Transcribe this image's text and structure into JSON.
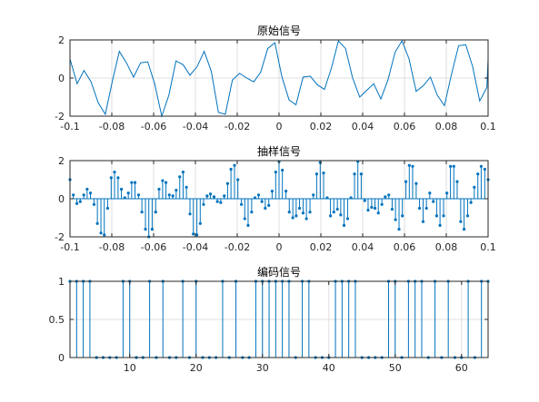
{
  "colors": {
    "series": "#0072BD",
    "axes": "#262626",
    "grid": "#dfdfdf",
    "background": "#ffffff"
  },
  "chart_data": [
    {
      "type": "line",
      "title": "原始信号",
      "xlabel": "",
      "ylabel": "",
      "xlim": [
        -0.1,
        0.1
      ],
      "ylim": [
        -2,
        2
      ],
      "grid": true,
      "xticks": [
        -0.1,
        -0.08,
        -0.06,
        -0.04,
        -0.02,
        0,
        0.02,
        0.04,
        0.06,
        0.08,
        0.1
      ],
      "xticklabels": [
        "-0.1",
        "-0.08",
        "-0.06",
        "-0.04",
        "-0.02",
        "0",
        "0.02",
        "0.04",
        "0.06",
        "0.08",
        "0.1"
      ],
      "yticks": [
        -2,
        0,
        2
      ],
      "yticklabels": [
        "-2",
        "0",
        "2"
      ],
      "series": [
        {
          "x": [
            -0.1,
            -0.0966,
            -0.0933,
            -0.0899,
            -0.0865,
            -0.0831,
            -0.0797,
            -0.0764,
            -0.073,
            -0.0696,
            -0.0662,
            -0.0628,
            -0.0595,
            -0.0561,
            -0.0527,
            -0.0493,
            -0.0459,
            -0.0426,
            -0.0392,
            -0.0358,
            -0.0324,
            -0.029,
            -0.0257,
            -0.0223,
            -0.0189,
            -0.0155,
            -0.0121,
            -0.0088,
            -0.0054,
            -0.002,
            0.0014,
            0.0048,
            0.0081,
            0.0115,
            0.0149,
            0.0183,
            0.0217,
            0.025,
            0.0284,
            0.0318,
            0.0352,
            0.0386,
            0.0419,
            0.0453,
            0.0487,
            0.0521,
            0.0555,
            0.0588,
            0.0622,
            0.0656,
            0.069,
            0.0724,
            0.0757,
            0.0791,
            0.0825,
            0.0859,
            0.0893,
            0.0926,
            0.096,
            0.0994,
            0.1
          ],
          "y": [
            1.0,
            -0.3,
            0.4,
            -0.2,
            -1.3,
            -1.9,
            -0.15,
            1.4,
            0.8,
            0.05,
            0.8,
            0.85,
            -0.3,
            -2.0,
            -0.9,
            0.9,
            0.7,
            0.15,
            0.6,
            1.4,
            0.35,
            -1.8,
            -1.9,
            -0.1,
            0.25,
            0.0,
            -0.2,
            0.3,
            1.55,
            1.85,
            0.05,
            -1.15,
            -1.4,
            0.05,
            0.1,
            -0.35,
            -0.6,
            0.5,
            1.95,
            1.55,
            0.0,
            -1.0,
            -0.65,
            -0.3,
            -1.1,
            -0.1,
            1.35,
            1.95,
            1.0,
            -0.7,
            -0.4,
            0.05,
            -0.9,
            -1.45,
            0.2,
            1.7,
            1.75,
            0.6,
            -1.2,
            -0.5,
            1.0
          ]
        }
      ]
    },
    {
      "type": "stem",
      "title": "抽样信号",
      "xlabel": "",
      "ylabel": "",
      "xlim": [
        -0.1,
        0.1
      ],
      "ylim": [
        -2,
        2
      ],
      "grid": true,
      "xticks": [
        -0.1,
        -0.08,
        -0.06,
        -0.04,
        -0.02,
        0,
        0.02,
        0.04,
        0.06,
        0.08,
        0.1
      ],
      "xticklabels": [
        "-0.1",
        "-0.08",
        "-0.06",
        "-0.04",
        "-0.02",
        "0",
        "0.02",
        "0.04",
        "0.06",
        "0.08",
        "0.1"
      ],
      "yticks": [
        -2,
        0,
        2
      ],
      "yticklabels": [
        "-2",
        "0",
        "2"
      ],
      "series": [
        {
          "x": [
            -0.1,
            -0.0984,
            -0.0967,
            -0.0951,
            -0.0934,
            -0.0918,
            -0.0902,
            -0.0885,
            -0.0869,
            -0.0852,
            -0.0836,
            -0.082,
            -0.0803,
            -0.0787,
            -0.077,
            -0.0754,
            -0.0738,
            -0.0721,
            -0.0705,
            -0.0689,
            -0.0672,
            -0.0656,
            -0.0639,
            -0.0623,
            -0.0607,
            -0.059,
            -0.0574,
            -0.0557,
            -0.0541,
            -0.0525,
            -0.0508,
            -0.0492,
            -0.0475,
            -0.0459,
            -0.0443,
            -0.0426,
            -0.041,
            -0.0393,
            -0.0377,
            -0.0361,
            -0.0344,
            -0.0328,
            -0.0311,
            -0.0295,
            -0.0279,
            -0.0262,
            -0.0246,
            -0.023,
            -0.0213,
            -0.0197,
            -0.018,
            -0.0164,
            -0.0148,
            -0.0131,
            -0.0115,
            -0.0098,
            -0.0082,
            -0.0066,
            -0.0049,
            -0.0033,
            -0.0016,
            0.0,
            0.0016,
            0.0033,
            0.0049,
            0.0066,
            0.0082,
            0.0098,
            0.0115,
            0.0131,
            0.0148,
            0.0164,
            0.018,
            0.0197,
            0.0213,
            0.023,
            0.0246,
            0.0262,
            0.0279,
            0.0295,
            0.0311,
            0.0328,
            0.0344,
            0.0361,
            0.0377,
            0.0393,
            0.041,
            0.0426,
            0.0443,
            0.0459,
            0.0475,
            0.0492,
            0.0508,
            0.0525,
            0.0541,
            0.0557,
            0.0574,
            0.059,
            0.0607,
            0.0623,
            0.0639,
            0.0656,
            0.0672,
            0.0689,
            0.0705,
            0.0721,
            0.0738,
            0.0754,
            0.077,
            0.0787,
            0.0803,
            0.082,
            0.0836,
            0.0852,
            0.0869,
            0.0885,
            0.0902,
            0.0918,
            0.0934,
            0.0951,
            0.0967,
            0.0984,
            0.1
          ],
          "y": [
            1.0,
            0.2,
            -0.25,
            -0.15,
            0.2,
            0.5,
            0.3,
            -0.3,
            -1.3,
            -1.8,
            -1.9,
            -0.5,
            1.1,
            1.4,
            1.1,
            0.5,
            0.05,
            0.3,
            0.85,
            0.85,
            0.2,
            -0.7,
            -1.6,
            -2.0,
            -1.6,
            -0.7,
            0.5,
            0.95,
            0.85,
            0.2,
            0.15,
            0.45,
            1.15,
            1.4,
            0.6,
            -0.8,
            -1.85,
            -1.9,
            -1.3,
            -0.3,
            0.15,
            0.25,
            0.1,
            -0.15,
            -0.2,
            0.15,
            0.8,
            1.55,
            1.75,
            1.0,
            -0.3,
            -1.05,
            -1.4,
            -0.7,
            0.05,
            0.2,
            -0.15,
            -0.5,
            -0.35,
            0.4,
            1.4,
            1.95,
            1.5,
            0.4,
            -0.7,
            -1.0,
            -0.9,
            -0.5,
            -0.75,
            -1.05,
            -0.7,
            0.2,
            1.3,
            1.9,
            1.35,
            0.05,
            -0.9,
            -0.7,
            -0.55,
            -0.85,
            -1.4,
            -1.05,
            0.05,
            1.3,
            1.95,
            1.3,
            -0.1,
            -0.6,
            -0.45,
            -0.5,
            -0.75,
            -0.3,
            0.1,
            0.2,
            -0.55,
            -1.1,
            -1.6,
            -0.9,
            0.9,
            1.75,
            1.7,
            0.8,
            -0.5,
            -1.2,
            -0.5,
            0.3,
            -0.15,
            -0.9,
            -1.4,
            -0.9,
            0.3,
            1.7,
            1.7,
            0.9,
            -1.2,
            -1.6,
            -0.9,
            -0.2,
            0.6,
            1.3,
            1.7,
            1.55,
            1.0
          ]
        }
      ]
    },
    {
      "type": "stem",
      "title": "编码信号",
      "xlabel": "",
      "ylabel": "",
      "xlim": [
        1,
        64
      ],
      "ylim": [
        0,
        1
      ],
      "grid": true,
      "xticks": [
        10,
        20,
        30,
        40,
        50,
        60
      ],
      "xticklabels": [
        "10",
        "20",
        "30",
        "40",
        "50",
        "60"
      ],
      "yticks": [
        0,
        0.5,
        1
      ],
      "yticklabels": [
        "0",
        "0.5",
        "1"
      ],
      "series": [
        {
          "x": [
            1,
            2,
            3,
            4,
            5,
            6,
            7,
            8,
            9,
            10,
            11,
            12,
            13,
            14,
            15,
            16,
            17,
            18,
            19,
            20,
            21,
            22,
            23,
            24,
            25,
            26,
            27,
            28,
            29,
            30,
            31,
            32,
            33,
            34,
            35,
            36,
            37,
            38,
            39,
            40,
            41,
            42,
            43,
            44,
            45,
            46,
            47,
            48,
            49,
            50,
            51,
            52,
            53,
            54,
            55,
            56,
            57,
            58,
            59,
            60,
            61,
            62,
            63,
            64
          ],
          "y": [
            1,
            1,
            1,
            1,
            0,
            0,
            0,
            0,
            1,
            1,
            0,
            0,
            1,
            0,
            1,
            0,
            0,
            1,
            0,
            1,
            0,
            0,
            0,
            1,
            0,
            1,
            0,
            0,
            1,
            1,
            1,
            1,
            1,
            1,
            0,
            1,
            1,
            0,
            0,
            0,
            1,
            1,
            1,
            1,
            0,
            0,
            0,
            0,
            1,
            1,
            0,
            1,
            1,
            1,
            0,
            1,
            0,
            1,
            0,
            0,
            1,
            0,
            1,
            1
          ]
        }
      ]
    }
  ]
}
